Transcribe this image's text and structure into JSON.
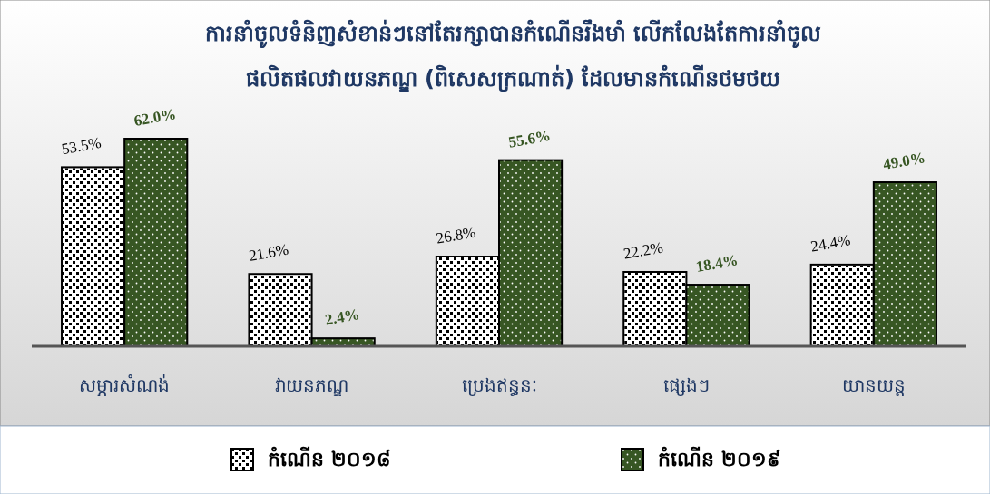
{
  "chart_data": {
    "type": "bar",
    "title": "ការនាំចូលទំនិញសំខាន់ៗនៅតែរក្សាបានកំណើនរឹងមាំ លើកលែងតែការនាំចូល\nផលិតផលវាយនភណ្ឌ (ពិសេសក្រណាត់) ដែលមានកំណើនថមថយ",
    "categories": [
      "សម្ភារសំណង់",
      "វាយនភណ្ឌ",
      "ប្រេងឥន្ធនៈ",
      "ផ្សេងៗ",
      "យានយន្ត"
    ],
    "series": [
      {
        "name": "កំណើន ២០១៨",
        "color": "#ffffff",
        "values": [
          53.5,
          21.6,
          26.8,
          22.2,
          24.4
        ],
        "value_labels": [
          "53.5%",
          "21.6%",
          "26.8%",
          "22.2%",
          "24.4%"
        ]
      },
      {
        "name": "កំណើន ២០១៩",
        "color": "#375623",
        "values": [
          62.0,
          2.4,
          55.6,
          18.4,
          49.0
        ],
        "value_labels": [
          "62.0%",
          "2.4%",
          "55.6%",
          "18.4%",
          "49.0%"
        ]
      }
    ],
    "legend": "bottom"
  }
}
